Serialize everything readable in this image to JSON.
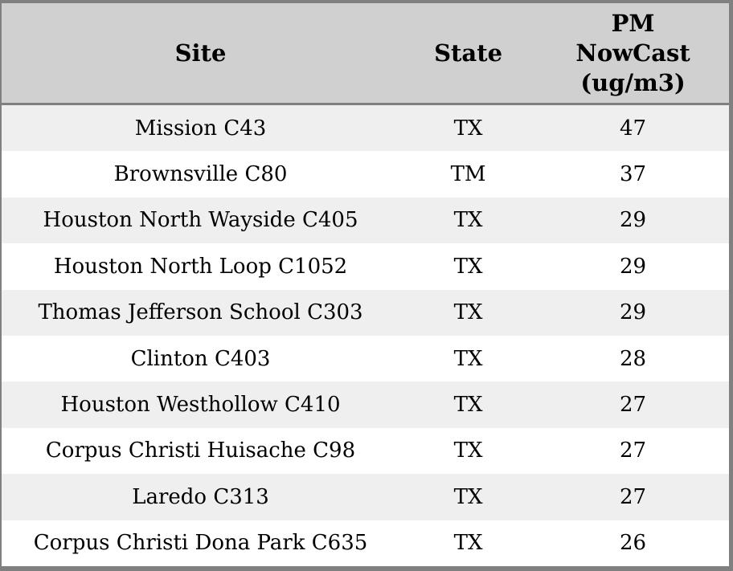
{
  "chart_data": {
    "type": "table",
    "columns": [
      "Site",
      "State",
      "PM\nNowCast\n(ug/m3)"
    ],
    "rows": [
      [
        "Mission C43",
        "TX",
        47
      ],
      [
        "Brownsville C80",
        "TM",
        37
      ],
      [
        "Houston North Wayside C405",
        "TX",
        29
      ],
      [
        "Houston North Loop C1052",
        "TX",
        29
      ],
      [
        "Thomas Jefferson School C303",
        "TX",
        29
      ],
      [
        "Clinton C403",
        "TX",
        28
      ],
      [
        "Houston Westhollow C410",
        "TX",
        27
      ],
      [
        "Corpus Christi Huisache C98",
        "TX",
        27
      ],
      [
        "Laredo C313",
        "TX",
        27
      ],
      [
        "Corpus Christi Dona Park C635",
        "TX",
        26
      ]
    ],
    "layout": {
      "header_rows": 1,
      "body_rows": 10,
      "grid": "none-between-body-rows",
      "row_striping": "odd-light-even-white"
    },
    "colors": {
      "header_bg": "#d0d0d0",
      "border": "#808080",
      "row_alt_bg": "#efefef",
      "row_bg": "#ffffff",
      "text": "#000000"
    }
  }
}
